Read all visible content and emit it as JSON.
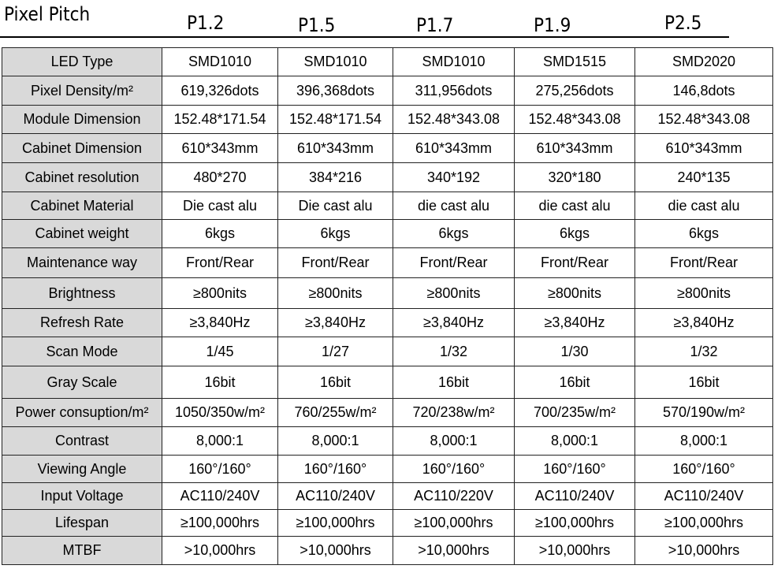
{
  "header": {
    "title": "Pixel Pitch",
    "models": [
      "P1.2",
      "P1.5",
      "P1.7",
      "P1.9",
      "P2.5"
    ]
  },
  "rows": [
    {
      "label": "LED Type",
      "values": [
        "SMD1010",
        "SMD1010",
        "SMD1010",
        "SMD1515",
        "SMD2020"
      ]
    },
    {
      "label": "Pixel Density/m²",
      "values": [
        "619,326dots",
        "396,368dots",
        "311,956dots",
        "275,256dots",
        "146,8dots"
      ]
    },
    {
      "label": "Module Dimension",
      "values": [
        "152.48*171.54",
        "152.48*171.54",
        "152.48*343.08",
        "152.48*343.08",
        "152.48*343.08"
      ]
    },
    {
      "label": "Cabinet Dimension",
      "values": [
        "610*343mm",
        "610*343mm",
        "610*343mm",
        "610*343mm",
        "610*343mm"
      ]
    },
    {
      "label": "Cabinet resolution",
      "values": [
        "480*270",
        "384*216",
        "340*192",
        "320*180",
        "240*135"
      ]
    },
    {
      "label": "Cabinet Material",
      "values": [
        "Die cast alu",
        "Die cast alu",
        "die cast alu",
        "die cast alu",
        "die cast alu"
      ]
    },
    {
      "label": "Cabinet weight",
      "values": [
        "6kgs",
        "6kgs",
        "6kgs",
        "6kgs",
        "6kgs"
      ]
    },
    {
      "label": "Maintenance way",
      "values": [
        "Front/Rear",
        "Front/Rear",
        "Front/Rear",
        "Front/Rear",
        "Front/Rear"
      ]
    },
    {
      "label": "Brightness",
      "values": [
        "≥800nits",
        "≥800nits",
        "≥800nits",
        "≥800nits",
        "≥800nits"
      ]
    },
    {
      "label": "Refresh Rate",
      "values": [
        "≥3,840Hz",
        "≥3,840Hz",
        "≥3,840Hz",
        "≥3,840Hz",
        "≥3,840Hz"
      ]
    },
    {
      "label": "Scan Mode",
      "values": [
        "1/45",
        "1/27",
        "1/32",
        "1/30",
        "1/32"
      ]
    },
    {
      "label": "Gray Scale",
      "values": [
        "16bit",
        "16bit",
        "16bit",
        "16bit",
        "16bit"
      ]
    },
    {
      "label": "Power consuption/m²",
      "values": [
        "1050/350w/m²",
        "760/255w/m²",
        "720/238w/m²",
        "700/235w/m²",
        "570/190w/m²"
      ]
    },
    {
      "label": "Contrast",
      "values": [
        "8,000:1",
        "8,000:1",
        "8,000:1",
        "8,000:1",
        "8,000:1"
      ]
    },
    {
      "label": "Viewing Angle",
      "values": [
        "160°/160°",
        "160°/160°",
        "160°/160°",
        "160°/160°",
        "160°/160°"
      ]
    },
    {
      "label": "Input Voltage",
      "values": [
        "AC110/240V",
        "AC110/240V",
        "AC110/220V",
        "AC110/240V",
        "AC110/240V"
      ]
    },
    {
      "label": "Lifespan",
      "values": [
        "≥100,000hrs",
        "≥100,000hrs",
        "≥100,000hrs",
        "≥100,000hrs",
        "≥100,000hrs"
      ]
    },
    {
      "label": "MTBF",
      "values": [
        ">10,000hrs",
        ">10,000hrs",
        ">10,000hrs",
        ">10,000hrs",
        ">10,000hrs"
      ]
    }
  ]
}
